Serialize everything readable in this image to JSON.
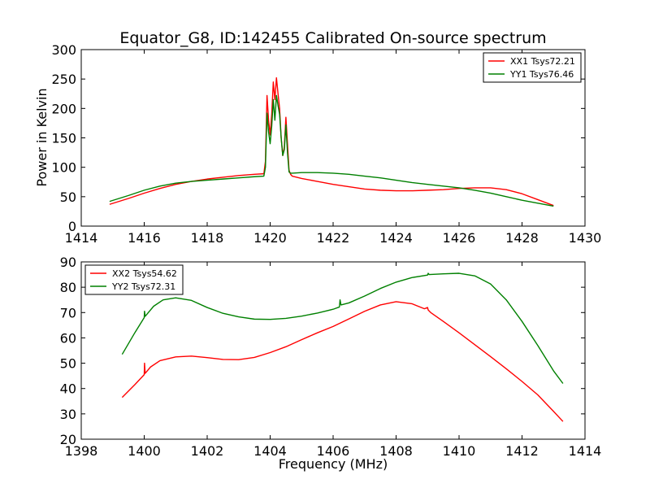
{
  "title": "Equator_G8, ID:142455 Calibrated On-source spectrum",
  "chart_data": [
    {
      "type": "line",
      "xlabel": "",
      "ylabel": "Power in Kelvin",
      "xlim": [
        1414,
        1430
      ],
      "ylim": [
        0,
        300
      ],
      "xticks": [
        1414,
        1416,
        1418,
        1420,
        1422,
        1424,
        1426,
        1428,
        1430
      ],
      "yticks": [
        0,
        50,
        100,
        150,
        200,
        250,
        300
      ],
      "legend_position": "top-right",
      "series": [
        {
          "name": "XX1 Tsys72.21",
          "color": "#ff0000",
          "x": [
            1414.9,
            1415.5,
            1416,
            1416.5,
            1417,
            1417.5,
            1418,
            1418.5,
            1419,
            1419.5,
            1419.8,
            1419.85,
            1419.9,
            1419.95,
            1420.0,
            1420.05,
            1420.1,
            1420.15,
            1420.2,
            1420.25,
            1420.3,
            1420.35,
            1420.4,
            1420.45,
            1420.5,
            1420.55,
            1420.6,
            1420.65,
            1420.7,
            1421,
            1421.5,
            1422,
            1422.5,
            1423,
            1423.5,
            1424,
            1424.5,
            1425,
            1425.5,
            1426,
            1426.5,
            1427,
            1427.5,
            1428,
            1428.5,
            1429
          ],
          "y": [
            37,
            47,
            56,
            64,
            71,
            76,
            80,
            83,
            86,
            88,
            89,
            110,
            222,
            180,
            155,
            190,
            245,
            215,
            252,
            225,
            200,
            150,
            120,
            135,
            185,
            140,
            95,
            88,
            85,
            81,
            76,
            71,
            67,
            63,
            61,
            60,
            60,
            61,
            62,
            64,
            65,
            65,
            62,
            55,
            45,
            35
          ]
        },
        {
          "name": "YY1 Tsys76.46",
          "color": "#008000",
          "x": [
            1414.9,
            1415.5,
            1416,
            1416.5,
            1417,
            1417.5,
            1418,
            1418.5,
            1419,
            1419.5,
            1419.8,
            1419.85,
            1419.9,
            1419.95,
            1420.0,
            1420.05,
            1420.1,
            1420.15,
            1420.2,
            1420.25,
            1420.3,
            1420.35,
            1420.4,
            1420.45,
            1420.5,
            1420.55,
            1420.6,
            1420.65,
            1420.7,
            1421,
            1421.5,
            1422,
            1422.5,
            1423,
            1423.5,
            1424,
            1424.5,
            1425,
            1425.5,
            1426,
            1426.5,
            1427,
            1427.5,
            1428,
            1428.5,
            1429
          ],
          "y": [
            42,
            52,
            61,
            68,
            73,
            76,
            78,
            80,
            82,
            84,
            85,
            100,
            192,
            160,
            140,
            170,
            215,
            180,
            222,
            205,
            190,
            150,
            120,
            130,
            172,
            125,
            92,
            90,
            90,
            91,
            91,
            90,
            88,
            85,
            82,
            78,
            74,
            71,
            68,
            65,
            61,
            56,
            50,
            44,
            39,
            34
          ]
        }
      ]
    },
    {
      "type": "line",
      "xlabel": "Frequency (MHz)",
      "ylabel": "",
      "xlim": [
        1398,
        1414
      ],
      "ylim": [
        20,
        90
      ],
      "xticks": [
        1398,
        1400,
        1402,
        1404,
        1406,
        1408,
        1410,
        1412,
        1414
      ],
      "yticks": [
        20,
        30,
        40,
        50,
        60,
        70,
        80,
        90
      ],
      "legend_position": "top-left",
      "series": [
        {
          "name": "XX2 Tsys54.62",
          "color": "#ff0000",
          "x": [
            1399.3,
            1399.7,
            1400.0,
            1400.01,
            1400.03,
            1400.2,
            1400.5,
            1401,
            1401.5,
            1402,
            1402.5,
            1403,
            1403.5,
            1404,
            1404.5,
            1405,
            1405.5,
            1406,
            1406.5,
            1407,
            1407.5,
            1408,
            1408.5,
            1408.9,
            1409.0,
            1409.02,
            1409.1,
            1409.5,
            1410,
            1410.5,
            1411,
            1411.5,
            1412,
            1412.5,
            1413,
            1413.3
          ],
          "y": [
            36.5,
            41.5,
            45.5,
            50,
            46,
            48.5,
            51,
            52.5,
            52.8,
            52.2,
            51.5,
            51.4,
            52.3,
            54.2,
            56.5,
            59.3,
            62,
            64.5,
            67.5,
            70.5,
            73,
            74.3,
            73.5,
            71.5,
            72,
            71,
            70,
            66.5,
            62,
            57.3,
            52.6,
            47.8,
            42.8,
            37.5,
            31,
            27
          ]
        },
        {
          "name": "YY2 Tsys72.31",
          "color": "#008000",
          "x": [
            1399.3,
            1399.7,
            1400.0,
            1400.01,
            1400.03,
            1400.3,
            1400.6,
            1401,
            1401.5,
            1402,
            1402.5,
            1403,
            1403.5,
            1404,
            1404.5,
            1405,
            1405.5,
            1406,
            1406.2,
            1406.22,
            1406.25,
            1406.5,
            1407,
            1407.5,
            1408,
            1408.5,
            1409,
            1409.02,
            1409.05,
            1409.5,
            1410,
            1410.5,
            1411,
            1411.5,
            1412,
            1412.5,
            1413,
            1413.3
          ],
          "y": [
            53.5,
            62,
            68,
            70.5,
            68.5,
            72.5,
            75,
            75.8,
            74.8,
            72,
            69.7,
            68.3,
            67.4,
            67.3,
            67.7,
            68.6,
            69.8,
            71.3,
            72.2,
            75,
            73,
            73.8,
            76.5,
            79.5,
            82,
            83.8,
            84.8,
            85.5,
            85,
            85.3,
            85.5,
            84.5,
            81.3,
            75,
            66.5,
            57,
            47,
            42
          ]
        }
      ]
    }
  ]
}
